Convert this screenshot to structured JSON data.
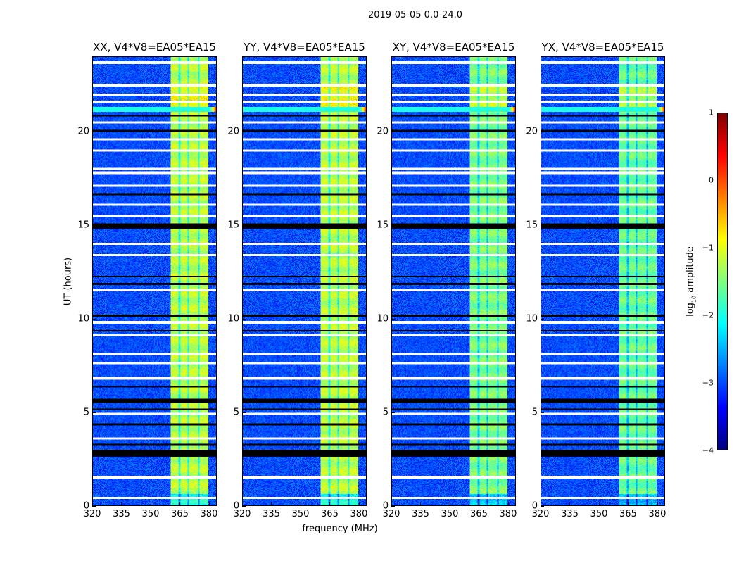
{
  "chart_data": {
    "type": "heatmap",
    "title": "2019-05-05 0.0-24.0",
    "xlabel": "frequency (MHz)",
    "ylabel": "UT (hours)",
    "xlim": [
      320,
      384
    ],
    "ylim": [
      0,
      24
    ],
    "xticks": [
      "320",
      "335",
      "350",
      "365",
      "380"
    ],
    "xtick_values": [
      320,
      335,
      350,
      365,
      380
    ],
    "yticks": [
      "0",
      "5",
      "10",
      "15",
      "20"
    ],
    "ytick_values": [
      0,
      5,
      10,
      15,
      20
    ],
    "panels": [
      {
        "title": "XX, V4*V8=EA05*EA15",
        "band_level": -1.2
      },
      {
        "title": "YY, V4*V8=EA05*EA15",
        "band_level": -1.2
      },
      {
        "title": "XY, V4*V8=EA05*EA15",
        "band_level": -1.5
      },
      {
        "title": "YX, V4*V8=EA05*EA15",
        "band_level": -1.6
      }
    ],
    "background_level": -3.0,
    "bright_band_mhz": [
      360.5,
      380
    ],
    "band_gaps_mhz": [
      365,
      369.5,
      375
    ],
    "flagged_white_hours": [
      0.4,
      1.5,
      3.6,
      4.9,
      6.8,
      7.6,
      8.1,
      9.1,
      9.8,
      11.5,
      13.4,
      14.0,
      15.5,
      16.1,
      17.1,
      17.8,
      18.0,
      19.0,
      19.6,
      20.5,
      21.6,
      22.0,
      22.5,
      23.7
    ],
    "flagged_black_hours": [
      [
        2.6,
        2.95
      ],
      [
        3.2,
        3.3
      ],
      [
        4.3,
        4.4
      ],
      [
        5.1,
        5.2
      ],
      [
        5.5,
        5.7
      ],
      [
        6.3,
        6.4
      ],
      [
        9.3,
        9.4
      ],
      [
        10.1,
        10.2
      ],
      [
        11.8,
        11.9
      ],
      [
        12.2,
        12.3
      ],
      [
        14.8,
        15.1
      ],
      [
        16.6,
        16.7
      ],
      [
        20.0,
        20.1
      ],
      [
        20.8,
        20.9
      ]
    ],
    "rfi_hour": 21.2,
    "colorbar": {
      "label": "log10 amplitude",
      "range": [
        -4,
        1
      ],
      "ticks": [
        "1",
        "0",
        "−1",
        "−2",
        "−3",
        "−4"
      ],
      "tick_values": [
        1,
        0,
        -1,
        -2,
        -3,
        -4
      ],
      "colormap": "jet"
    }
  }
}
